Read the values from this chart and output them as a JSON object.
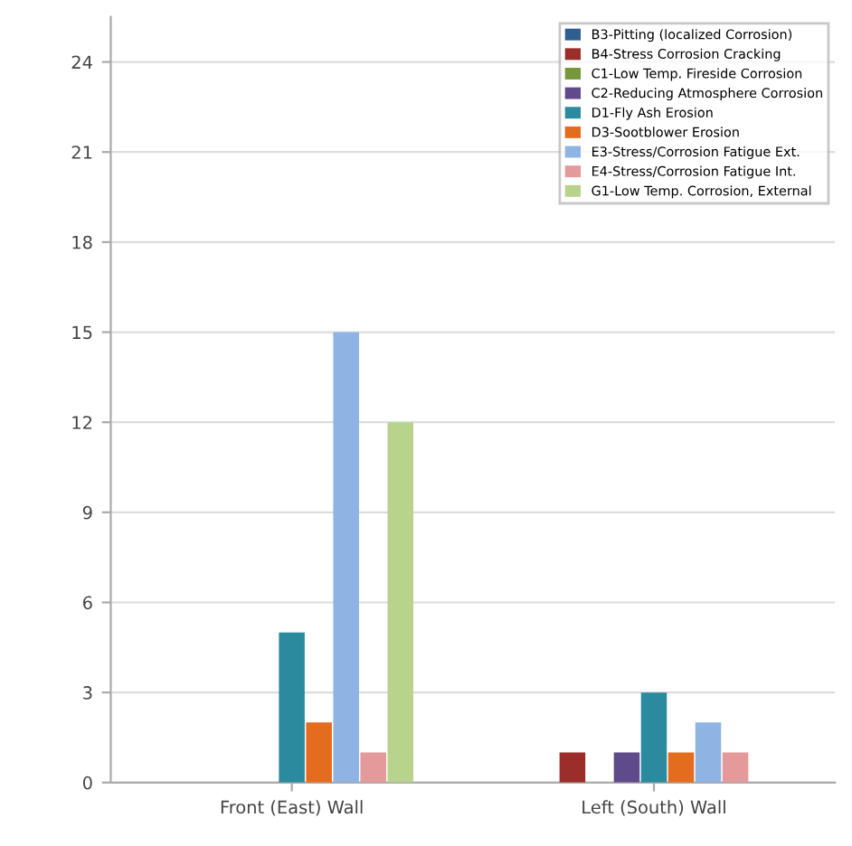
{
  "chart_data": {
    "type": "bar",
    "categories": [
      "Front (East) Wall",
      "Left (South) Wall"
    ],
    "series": [
      {
        "name": "B3-Pitting (localized Corrosion)",
        "color": "#2e5f8f",
        "values": [
          0,
          0
        ]
      },
      {
        "name": "B4-Stress Corrosion Cracking",
        "color": "#9b2d2a",
        "values": [
          0,
          1
        ]
      },
      {
        "name": "C1-Low Temp. Fireside Corrosion",
        "color": "#76973b",
        "values": [
          0,
          0
        ]
      },
      {
        "name": "C2-Reducing Atmosphere Corrosion",
        "color": "#5f4a8b",
        "values": [
          0,
          1
        ]
      },
      {
        "name": "D1-Fly Ash Erosion",
        "color": "#2b8a9e",
        "values": [
          5,
          3
        ]
      },
      {
        "name": "D3-Sootblower Erosion",
        "color": "#e46c1e",
        "values": [
          2,
          1
        ]
      },
      {
        "name": "E3-Stress/Corrosion Fatigue Ext.",
        "color": "#8fb4e3",
        "values": [
          15,
          2
        ]
      },
      {
        "name": "E4-Stress/Corrosion Fatigue Int.",
        "color": "#e4999a",
        "values": [
          1,
          1
        ]
      },
      {
        "name": "G1-Low Temp. Corrosion, External",
        "color": "#b8d38b",
        "values": [
          12,
          0
        ]
      }
    ],
    "ylim": [
      0,
      25.5
    ],
    "yticks": [
      0,
      3,
      6,
      9,
      12,
      15,
      18,
      21,
      24
    ],
    "grid": "y",
    "legend": "top right"
  }
}
